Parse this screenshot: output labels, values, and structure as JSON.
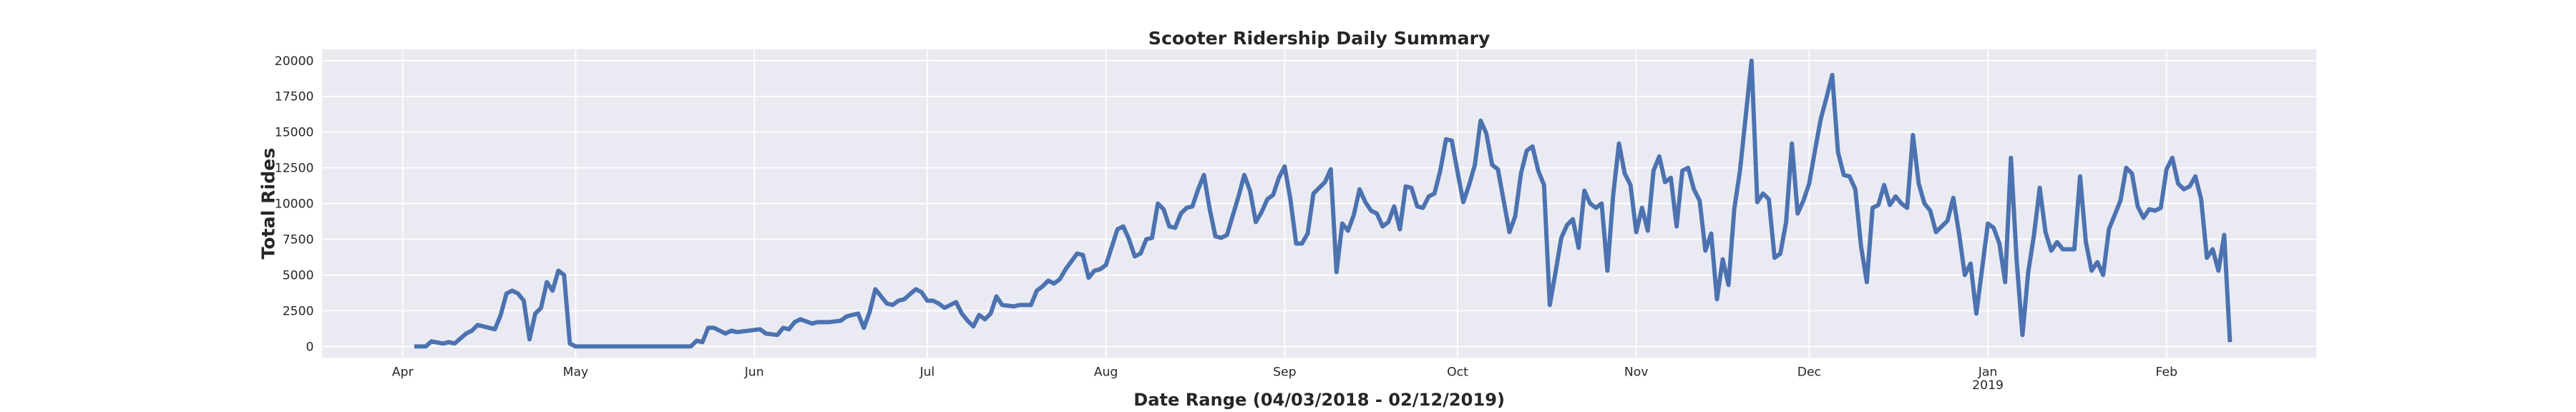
{
  "chart_data": {
    "type": "line",
    "title": "Scooter Ridership Daily Summary",
    "xlabel": "Date Range (04/03/2018 - 02/12/2019)",
    "ylabel": "Total Rides",
    "color": "#4c72b0",
    "grid": true,
    "xlim": [
      -14,
      332
    ],
    "ylim": [
      -800,
      20800
    ],
    "yticks": [
      0,
      2500,
      5000,
      7500,
      10000,
      12500,
      15000,
      17500,
      20000
    ],
    "xticks": [
      {
        "value": 0,
        "label": "Apr"
      },
      {
        "value": 30,
        "label": "May"
      },
      {
        "value": 61,
        "label": "Jun"
      },
      {
        "value": 91,
        "label": "Jul"
      },
      {
        "value": 122,
        "label": "Aug"
      },
      {
        "value": 153,
        "label": "Sep"
      },
      {
        "value": 183,
        "label": "Oct"
      },
      {
        "value": 214,
        "label": "Nov"
      },
      {
        "value": 244,
        "label": "Dec"
      },
      {
        "value": 275,
        "label": "Jan"
      },
      {
        "value": 306,
        "label": "Feb"
      }
    ],
    "x_secondary_label": "2019",
    "x": [
      2,
      4,
      5,
      7,
      8,
      9,
      11,
      12,
      13,
      15,
      16,
      17,
      18,
      19,
      20,
      21,
      22,
      23,
      24,
      25,
      26,
      27,
      28,
      29,
      30,
      50,
      51,
      52,
      53,
      54,
      56,
      57,
      58,
      60,
      62,
      63,
      65,
      66,
      67,
      68,
      69,
      71,
      72,
      74,
      76,
      77,
      79,
      80,
      81,
      82,
      84,
      85,
      86,
      87,
      89,
      90,
      91,
      92,
      93,
      94,
      96,
      97,
      98,
      99,
      100,
      101,
      102,
      103,
      104,
      106,
      107,
      109,
      110,
      111,
      112,
      113,
      114,
      115,
      117,
      118,
      119,
      120,
      121,
      122,
      124,
      125,
      126,
      127,
      128,
      129,
      130,
      131,
      132,
      133,
      134,
      135,
      136,
      137,
      138,
      139,
      140,
      141,
      142,
      143,
      145,
      146,
      147,
      148,
      149,
      150,
      151,
      152,
      153,
      154,
      155,
      156,
      157,
      158,
      160,
      161,
      162,
      163,
      164,
      165,
      166,
      167,
      168,
      169,
      170,
      171,
      172,
      173,
      174,
      175,
      176,
      177,
      178,
      179,
      180,
      181,
      182,
      183,
      184,
      185,
      186,
      187,
      188,
      189,
      190,
      192,
      193,
      194,
      195,
      196,
      197,
      198,
      199,
      200,
      201,
      202,
      203,
      204,
      205,
      206,
      207,
      208,
      209,
      210,
      211,
      212,
      213,
      214,
      215,
      216,
      217,
      218,
      219,
      220,
      221,
      222,
      223,
      224,
      225,
      226,
      227,
      228,
      229,
      230,
      231,
      232,
      234,
      235,
      236,
      237,
      238,
      239,
      240,
      241,
      242,
      243,
      244,
      245,
      246,
      247,
      248,
      249,
      250,
      251,
      252,
      253,
      254,
      255,
      256,
      257,
      258,
      259,
      260,
      261,
      262,
      263,
      264,
      265,
      266,
      267,
      268,
      269,
      270,
      271,
      272,
      273,
      275,
      276,
      277,
      278,
      279,
      280,
      281,
      282,
      283,
      284,
      285,
      286,
      287,
      288,
      289,
      290,
      291,
      292,
      293,
      294,
      295,
      296,
      298,
      299,
      300,
      301,
      302,
      303,
      304,
      305,
      306,
      307,
      308,
      309,
      310,
      311,
      312,
      313,
      314,
      315,
      316,
      317
    ],
    "values": [
      0,
      0,
      350,
      200,
      300,
      200,
      900,
      1100,
      1500,
      1300,
      1200,
      2200,
      3700,
      3900,
      3700,
      3200,
      500,
      2300,
      2700,
      4500,
      3900,
      5300,
      5000,
      200,
      0,
      0,
      400,
      300,
      1300,
      1300,
      900,
      1100,
      1000,
      1100,
      1200,
      900,
      800,
      1300,
      1200,
      1700,
      1900,
      1600,
      1700,
      1700,
      1800,
      2100,
      2300,
      1300,
      2400,
      4000,
      3000,
      2900,
      3200,
      3300,
      4000,
      3800,
      3200,
      3200,
      3000,
      2700,
      3100,
      2300,
      1800,
      1400,
      2200,
      1900,
      2300,
      3500,
      2900,
      2800,
      2900,
      2900,
      3900,
      4200,
      4600,
      4400,
      4700,
      5400,
      6500,
      6400,
      4800,
      5300,
      5400,
      5700,
      8200,
      8400,
      7500,
      6300,
      6500,
      7500,
      7600,
      10000,
      9600,
      8400,
      8300,
      9300,
      9700,
      9800,
      11000,
      12000,
      9600,
      7700,
      7600,
      7800,
      10500,
      12000,
      10900,
      8700,
      9400,
      10300,
      10600,
      11800,
      12600,
      10300,
      7200,
      7200,
      7900,
      10700,
      11500,
      12400,
      5200,
      8600,
      8100,
      9200,
      11000,
      10100,
      9500,
      9300,
      8400,
      8700,
      9800,
      8200,
      11200,
      11100,
      9800,
      9700,
      10500,
      10700,
      12300,
      14500,
      14400,
      12200,
      10100,
      11300,
      12700,
      15800,
      14900,
      12700,
      12400,
      8000,
      9100,
      12100,
      13700,
      14000,
      12300,
      11300,
      2900,
      5200,
      7600,
      8500,
      8900,
      6900,
      10900,
      10000,
      9700,
      10000,
      5300,
      10600,
      14200,
      12100,
      11300,
      8000,
      9700,
      8100,
      12300,
      13300,
      11500,
      11800,
      8400,
      12300,
      12500,
      11000,
      10200,
      6700,
      7900,
      3300,
      6100,
      4300,
      9600,
      12300,
      20000,
      10100,
      10700,
      10300,
      6200,
      6500,
      8700,
      14200,
      9300,
      10200,
      11400,
      13700,
      15900,
      17400,
      19000,
      13600,
      12000,
      11900,
      11000,
      7000,
      4500,
      9700,
      9900,
      11300,
      9900,
      10500,
      10000,
      9700,
      14800,
      11400,
      10000,
      9500,
      8000,
      8400,
      8800,
      10400,
      7900,
      5000,
      5800,
      2300,
      8600,
      8300,
      7200,
      4500,
      13200,
      6000,
      800,
      5200,
      7800,
      11100,
      8000,
      6700,
      7300,
      6800,
      6800,
      6800,
      11900,
      7300,
      5300,
      5900,
      5000,
      8200,
      10200,
      12500,
      12100,
      9800,
      9000,
      9600,
      9500,
      9700,
      12400,
      13200,
      11400,
      11000,
      11200,
      11900,
      10300,
      6200,
      6800,
      5300,
      7800,
      300
    ]
  }
}
